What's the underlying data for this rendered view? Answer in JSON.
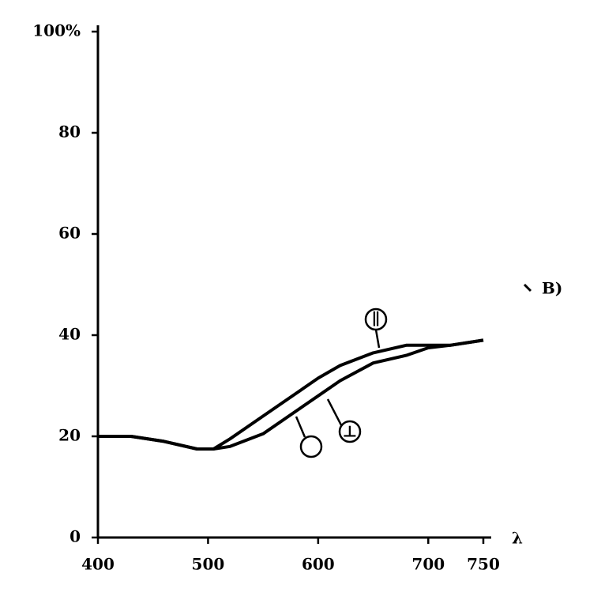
{
  "chart_data": {
    "type": "line",
    "x": [
      400,
      430,
      460,
      490,
      505,
      520,
      550,
      580,
      600,
      620,
      650,
      680,
      700,
      720,
      750
    ],
    "series": [
      {
        "name": "∥",
        "color": "#000000",
        "values": [
          20,
          20,
          19,
          17.5,
          17.5,
          19.5,
          24,
          28.5,
          31.5,
          34,
          36.5,
          38,
          38,
          38,
          39
        ]
      },
      {
        "name": "⊥",
        "color": "#000000",
        "values": [
          20,
          20,
          19,
          17.5,
          17.5,
          18,
          20.5,
          25,
          28,
          31,
          34.5,
          36,
          37.5,
          38,
          39
        ]
      }
    ],
    "xlim": [
      400,
      750
    ],
    "xticks": [
      400,
      500,
      600,
      700,
      750
    ],
    "ylim": [
      0,
      100
    ],
    "yticks": [
      0,
      20,
      40,
      60,
      80,
      {
        "value": 100,
        "label": "100%"
      }
    ],
    "x_label": "λ",
    "annotation": "B)",
    "grid": false
  }
}
